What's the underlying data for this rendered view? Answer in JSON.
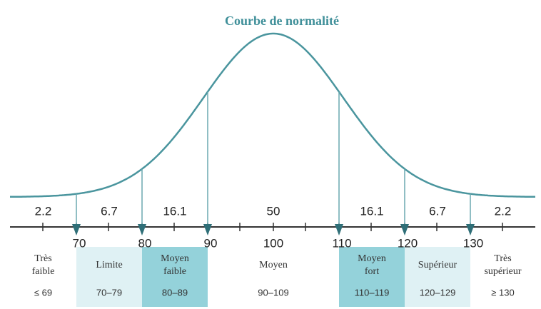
{
  "title": "Courbe de normalité",
  "axis_ticks": [
    70,
    80,
    90,
    100,
    110,
    120,
    130
  ],
  "bands": [
    {
      "percent": "2.2",
      "label": [
        "Très",
        "faible"
      ],
      "range": "≤ 69"
    },
    {
      "percent": "6.7",
      "label": [
        "Limite"
      ],
      "range": "70–79"
    },
    {
      "percent": "16.1",
      "label": [
        "Moyen",
        "faible"
      ],
      "range": "80–89"
    },
    {
      "percent": "50",
      "label": [
        "Moyen"
      ],
      "range": "90–109"
    },
    {
      "percent": "16.1",
      "label": [
        "Moyen",
        "fort"
      ],
      "range": "110–119"
    },
    {
      "percent": "6.7",
      "label": [
        "Supérieur"
      ],
      "range": "120–129"
    },
    {
      "percent": "2.2",
      "label": [
        "Très",
        "supérieur"
      ],
      "range": "≥ 130"
    }
  ]
}
